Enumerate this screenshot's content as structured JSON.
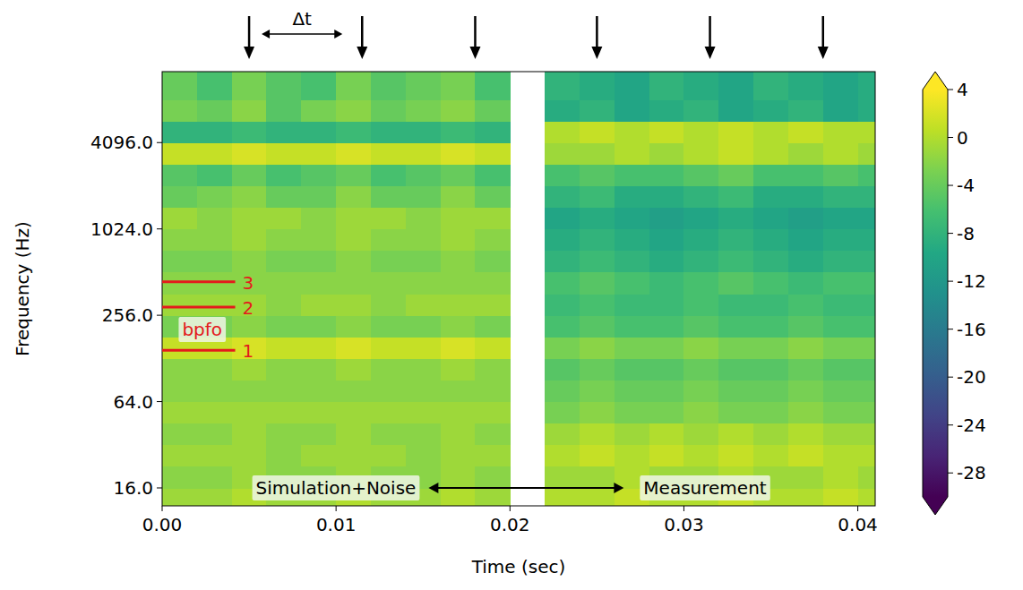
{
  "chart_data": {
    "type": "heatmap",
    "x_label": "Time (sec)",
    "y_label": "Frequency (Hz)",
    "log": "y",
    "xlim": [
      0,
      0.041
    ],
    "xticks": [
      {
        "value": 0,
        "label": "0.00"
      },
      {
        "value": 0.01,
        "label": "0.01"
      },
      {
        "value": 0.02,
        "label": "0.02"
      },
      {
        "value": 0.03,
        "label": "0.03"
      },
      {
        "value": 0.04,
        "label": "0.04"
      }
    ],
    "ylim": [
      12,
      12800
    ],
    "yticks": [
      {
        "value": 16,
        "label": "16.0"
      },
      {
        "value": 64,
        "label": "64.0"
      },
      {
        "value": 256,
        "label": "256.0"
      },
      {
        "value": 1024,
        "label": "1024.0"
      },
      {
        "value": 4096,
        "label": "4096.0"
      }
    ],
    "x": [
      0.001,
      0.003,
      0.005,
      0.007,
      0.009,
      0.011,
      0.013,
      0.015,
      0.017,
      0.019,
      0.021,
      0.023,
      0.025,
      0.027,
      0.029,
      0.031,
      0.033,
      0.035,
      0.037,
      0.039,
      0.041
    ],
    "y": [
      13.5,
      19,
      27,
      38,
      54,
      76,
      108,
      152,
      215,
      304,
      431,
      609,
      861,
      1218,
      1722,
      2436,
      3444,
      4871,
      6889,
      9742
    ],
    "cells": [
      [
        -1,
        -1,
        0,
        -1,
        -1,
        0,
        -1,
        -1,
        0,
        -1,
        null,
        0,
        0,
        1,
        0,
        0,
        1,
        0,
        0,
        1,
        0
      ],
      [
        -2,
        -2,
        -1,
        -2,
        -2,
        -1,
        -2,
        -2,
        -1,
        -2,
        null,
        -1,
        -1,
        0,
        -1,
        -1,
        0,
        -1,
        -1,
        0,
        -1
      ],
      [
        -1,
        -1,
        -1,
        -2,
        -1,
        -1,
        -1,
        -2,
        -1,
        -1,
        null,
        0,
        1,
        0,
        1,
        0,
        1,
        0,
        1,
        0,
        0
      ],
      [
        -2,
        -2,
        -1,
        -2,
        -2,
        -1,
        -2,
        -2,
        -1,
        -2,
        null,
        -1,
        0,
        -1,
        0,
        -1,
        0,
        -1,
        0,
        -1,
        -1
      ],
      [
        -1,
        -1,
        -1,
        -1,
        -1,
        -1,
        -1,
        -1,
        -1,
        -1,
        null,
        -3,
        -2,
        -3,
        -3,
        -2,
        -3,
        -3,
        -2,
        -3,
        -3
      ],
      [
        -2,
        -2,
        -2,
        -2,
        -2,
        -2,
        -2,
        -2,
        -2,
        -2,
        null,
        -4,
        -3,
        -4,
        -4,
        -3,
        -4,
        -4,
        -3,
        -4,
        -4
      ],
      [
        -2,
        -2,
        -1,
        -2,
        -2,
        -1,
        -2,
        -2,
        -1,
        -2,
        null,
        -5,
        -4,
        -5,
        -5,
        -4,
        -5,
        -5,
        -4,
        -5,
        -5
      ],
      [
        1,
        1,
        2,
        1,
        1,
        2,
        1,
        1,
        2,
        1,
        null,
        -3,
        -2,
        -3,
        -3,
        -2,
        -3,
        -3,
        -2,
        -3,
        -3
      ],
      [
        -3,
        -3,
        -2,
        -3,
        -3,
        -2,
        -3,
        -3,
        -2,
        -3,
        null,
        -6,
        -5,
        -6,
        -6,
        -5,
        -6,
        -6,
        -5,
        -6,
        -6
      ],
      [
        -1,
        -1,
        -1,
        -2,
        -1,
        -1,
        -2,
        -1,
        -1,
        -1,
        null,
        -7,
        -6,
        -7,
        -7,
        -6,
        -7,
        -7,
        -6,
        -7,
        -7
      ],
      [
        -2,
        -2,
        -2,
        -2,
        -2,
        -2,
        -2,
        -2,
        -2,
        -2,
        null,
        -6,
        -5,
        -6,
        -7,
        -6,
        -5,
        -6,
        -7,
        -6,
        -6
      ],
      [
        -3,
        -3,
        -2,
        -3,
        -3,
        -2,
        -3,
        -3,
        -2,
        -3,
        null,
        -8,
        -7,
        -8,
        -9,
        -8,
        -7,
        -8,
        -9,
        -8,
        -8
      ],
      [
        -2,
        -2,
        -1,
        -2,
        -2,
        -1,
        -2,
        -2,
        -1,
        -2,
        null,
        -9,
        -8,
        -9,
        -10,
        -9,
        -8,
        -9,
        -10,
        -9,
        -9
      ],
      [
        -1,
        -2,
        -1,
        -1,
        -2,
        -1,
        -1,
        -2,
        -1,
        -1,
        null,
        -10,
        -9,
        -10,
        -11,
        -10,
        -9,
        -10,
        -11,
        -10,
        -10
      ],
      [
        -4,
        -3,
        -2,
        -4,
        -4,
        -2,
        -4,
        -4,
        -2,
        -4,
        null,
        -8,
        -7,
        -9,
        -9,
        -8,
        -7,
        -9,
        -9,
        -8,
        -8
      ],
      [
        -5,
        -6,
        -4,
        -6,
        -5,
        -4,
        -6,
        -5,
        -4,
        -6,
        null,
        -6,
        -5,
        -6,
        -6,
        -5,
        -4,
        -6,
        -6,
        -5,
        -6
      ],
      [
        1,
        1,
        2,
        1,
        1,
        2,
        1,
        1,
        2,
        1,
        null,
        -1,
        -1,
        0,
        -1,
        0,
        1,
        0,
        -1,
        0,
        -1
      ],
      [
        -8,
        -8,
        -7,
        -8,
        -8,
        -7,
        -8,
        -8,
        -7,
        -8,
        null,
        0,
        1,
        0,
        1,
        0,
        1,
        0,
        1,
        0,
        0
      ],
      [
        -3,
        -4,
        -2,
        -5,
        -3,
        -2,
        -4,
        -3,
        -2,
        -4,
        null,
        -9,
        -8,
        -10,
        -9,
        -8,
        -10,
        -9,
        -8,
        -10,
        -9
      ],
      [
        -4,
        -6,
        -3,
        -5,
        -6,
        -3,
        -5,
        -4,
        -3,
        -6,
        null,
        -8,
        -9,
        -10,
        -8,
        -9,
        -10,
        -8,
        -9,
        -10,
        -9
      ]
    ],
    "colorbar_range": [
      -30,
      4
    ],
    "colorbar_ticks": [
      4,
      0,
      -4,
      -8,
      -12,
      -16,
      -20,
      -24,
      -28
    ],
    "annotations": {
      "impulse_times": [
        0.005,
        0.0115,
        0.018,
        0.025,
        0.0315,
        0.038
      ],
      "interval_label": "Δt",
      "bpfo_label": "bpfo",
      "bpfo_lines": [
        {
          "label": "1",
          "value": 146
        },
        {
          "label": "2",
          "value": 292
        },
        {
          "label": "3",
          "value": 438
        }
      ],
      "bpfo_line_end": 0.0042,
      "left_label": "Simulation+Noise",
      "right_label": "Measurement"
    }
  }
}
